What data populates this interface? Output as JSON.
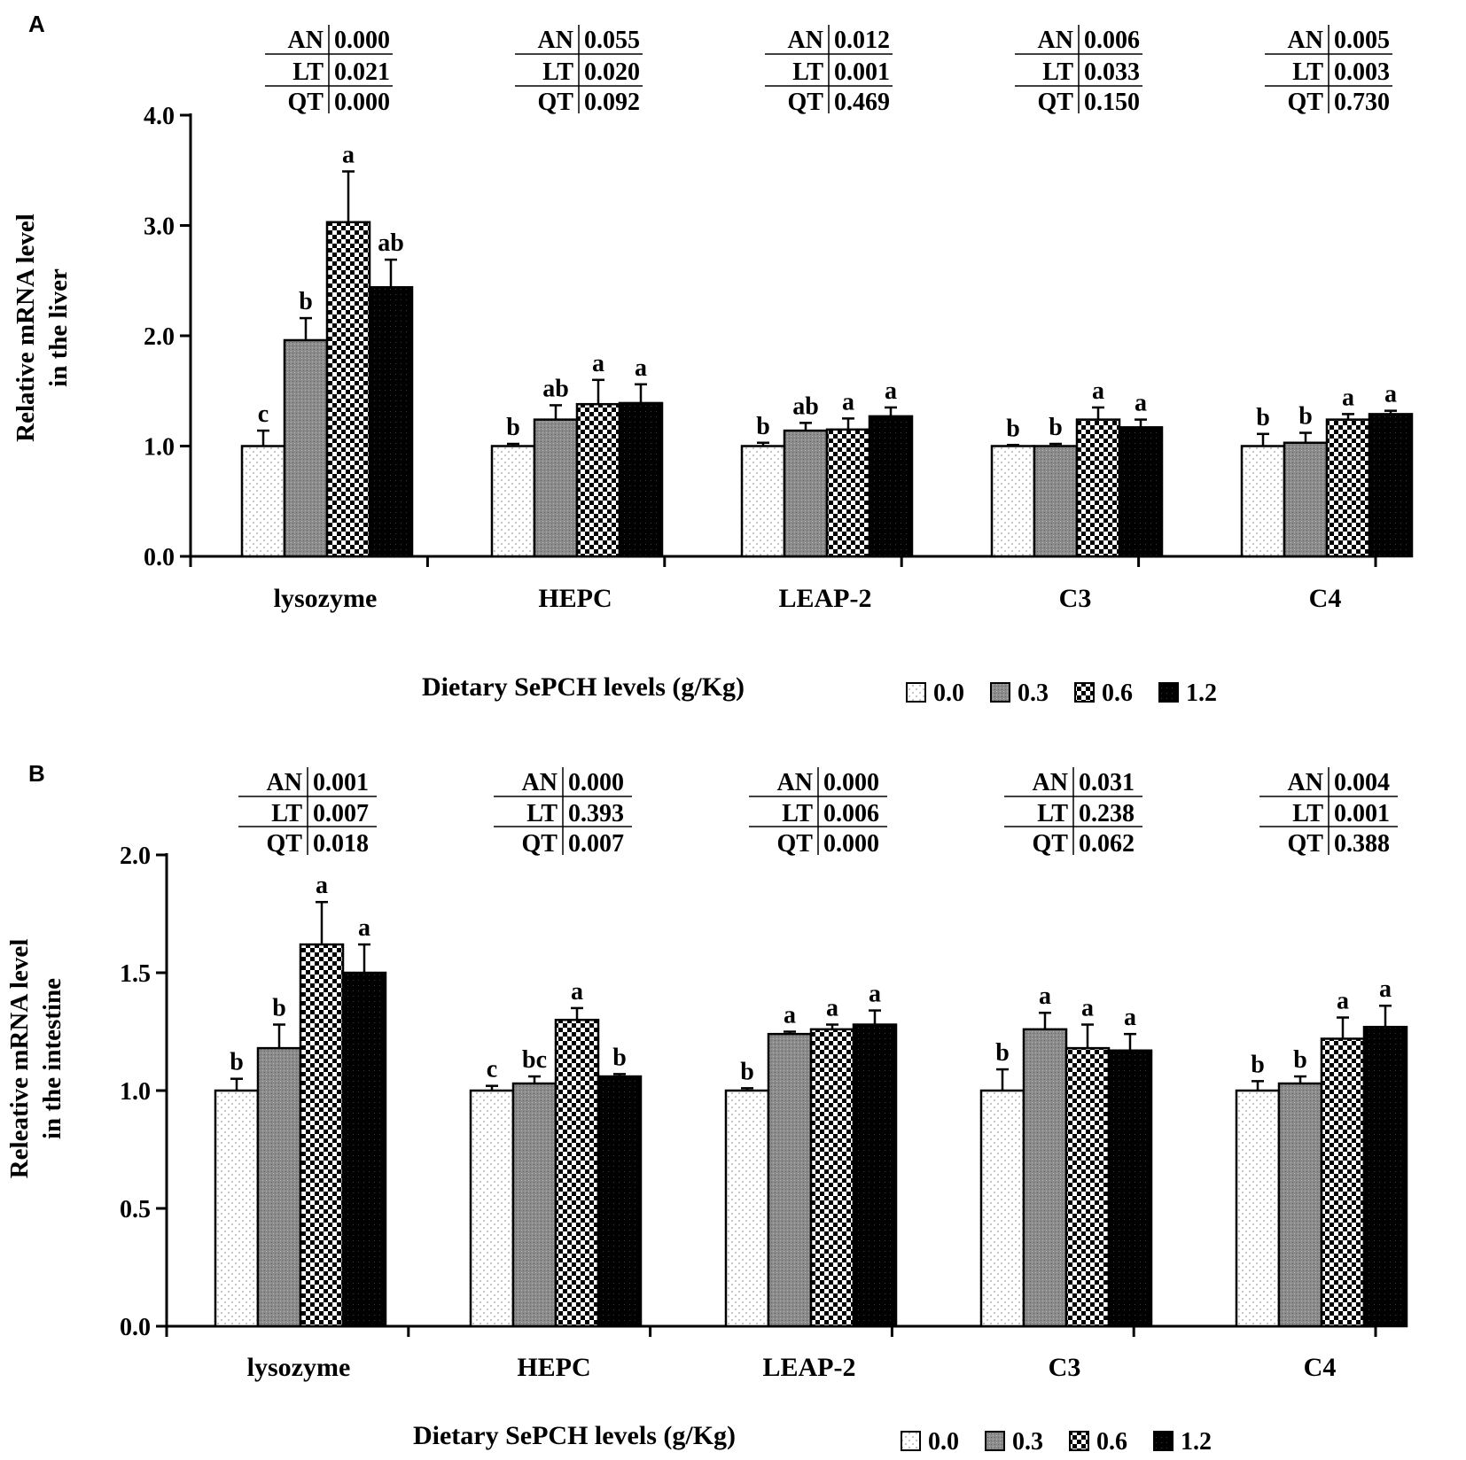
{
  "figure": {
    "colors": {
      "axis": "#000000",
      "bar_0_0": "#ffffff",
      "bar_0_3": "#8c8c8c",
      "bar_0_6": "checkered",
      "bar_1_2": "#000000"
    }
  },
  "chart_data": [
    {
      "type": "bar",
      "panel_label": "A",
      "title": "",
      "ylabel_lines": [
        "Relative mRNA level",
        "in the liver"
      ],
      "xlabel": "Dietary SePCH levels (g/Kg)",
      "ylim": [
        0,
        4.0
      ],
      "yticks": [
        "0.0",
        "1.0",
        "2.0",
        "3.0",
        "4.0"
      ],
      "categories": [
        "lysozyme",
        "HEPC",
        "LEAP-2",
        "C3",
        "C4"
      ],
      "legend": [
        "0.0",
        "0.3",
        "0.6",
        "1.2"
      ],
      "series": [
        {
          "name": "0.0",
          "values": [
            1.0,
            1.0,
            1.0,
            1.0,
            1.0
          ],
          "errors": [
            0.14,
            0.02,
            0.03,
            0.01,
            0.11
          ],
          "letters": [
            "c",
            "b",
            "b",
            "b",
            "b"
          ]
        },
        {
          "name": "0.3",
          "values": [
            1.96,
            1.24,
            1.14,
            1.0,
            1.03
          ],
          "errors": [
            0.2,
            0.13,
            0.07,
            0.02,
            0.09
          ],
          "letters": [
            "b",
            "ab",
            "ab",
            "b",
            "b"
          ]
        },
        {
          "name": "0.6",
          "values": [
            3.03,
            1.38,
            1.15,
            1.24,
            1.24
          ],
          "errors": [
            0.46,
            0.22,
            0.1,
            0.11,
            0.05
          ],
          "letters": [
            "a",
            "a",
            "a",
            "a",
            "a"
          ]
        },
        {
          "name": "1.2",
          "values": [
            2.44,
            1.39,
            1.27,
            1.17,
            1.29
          ],
          "errors": [
            0.25,
            0.17,
            0.08,
            0.07,
            0.03
          ],
          "letters": [
            "ab",
            "a",
            "a",
            "a",
            "a"
          ]
        }
      ],
      "stats": [
        {
          "AN": "0.000",
          "LT": "0.021",
          "QT": "0.000"
        },
        {
          "AN": "0.055",
          "LT": "0.020",
          "QT": "0.092"
        },
        {
          "AN": "0.012",
          "LT": "0.001",
          "QT": "0.469"
        },
        {
          "AN": "0.006",
          "LT": "0.033",
          "QT": "0.150"
        },
        {
          "AN": "0.005",
          "LT": "0.003",
          "QT": "0.730"
        }
      ]
    },
    {
      "type": "bar",
      "panel_label": "B",
      "title": "",
      "ylabel_lines": [
        "Releative mRNA level",
        "in the intestine"
      ],
      "xlabel": "Dietary SePCH levels (g/Kg)",
      "ylim": [
        0,
        2.0
      ],
      "yticks": [
        "0.0",
        "0.5",
        "1.0",
        "1.5",
        "2.0"
      ],
      "categories": [
        "lysozyme",
        "HEPC",
        "LEAP-2",
        "C3",
        "C4"
      ],
      "legend": [
        "0.0",
        "0.3",
        "0.6",
        "1.2"
      ],
      "series": [
        {
          "name": "0.0",
          "values": [
            1.0,
            1.0,
            1.0,
            1.0,
            1.0
          ],
          "errors": [
            0.05,
            0.02,
            0.01,
            0.09,
            0.04
          ],
          "letters": [
            "b",
            "c",
            "b",
            "b",
            "b"
          ]
        },
        {
          "name": "0.3",
          "values": [
            1.18,
            1.03,
            1.24,
            1.26,
            1.03
          ],
          "errors": [
            0.1,
            0.03,
            0.01,
            0.07,
            0.03
          ],
          "letters": [
            "b",
            "bc",
            "a",
            "a",
            "b"
          ]
        },
        {
          "name": "0.6",
          "values": [
            1.62,
            1.3,
            1.26,
            1.18,
            1.22
          ],
          "errors": [
            0.18,
            0.05,
            0.02,
            0.1,
            0.09
          ],
          "letters": [
            "a",
            "a",
            "a",
            "a",
            "a"
          ]
        },
        {
          "name": "1.2",
          "values": [
            1.5,
            1.06,
            1.28,
            1.17,
            1.27
          ],
          "errors": [
            0.12,
            0.01,
            0.06,
            0.07,
            0.09
          ],
          "letters": [
            "a",
            "b",
            "a",
            "a",
            "a"
          ]
        }
      ],
      "stats": [
        {
          "AN": "0.001",
          "LT": "0.007",
          "QT": "0.018"
        },
        {
          "AN": "0.000",
          "LT": "0.393",
          "QT": "0.007"
        },
        {
          "AN": "0.000",
          "LT": "0.006",
          "QT": "0.000"
        },
        {
          "AN": "0.031",
          "LT": "0.238",
          "QT": "0.062"
        },
        {
          "AN": "0.004",
          "LT": "0.001",
          "QT": "0.388"
        }
      ]
    }
  ]
}
